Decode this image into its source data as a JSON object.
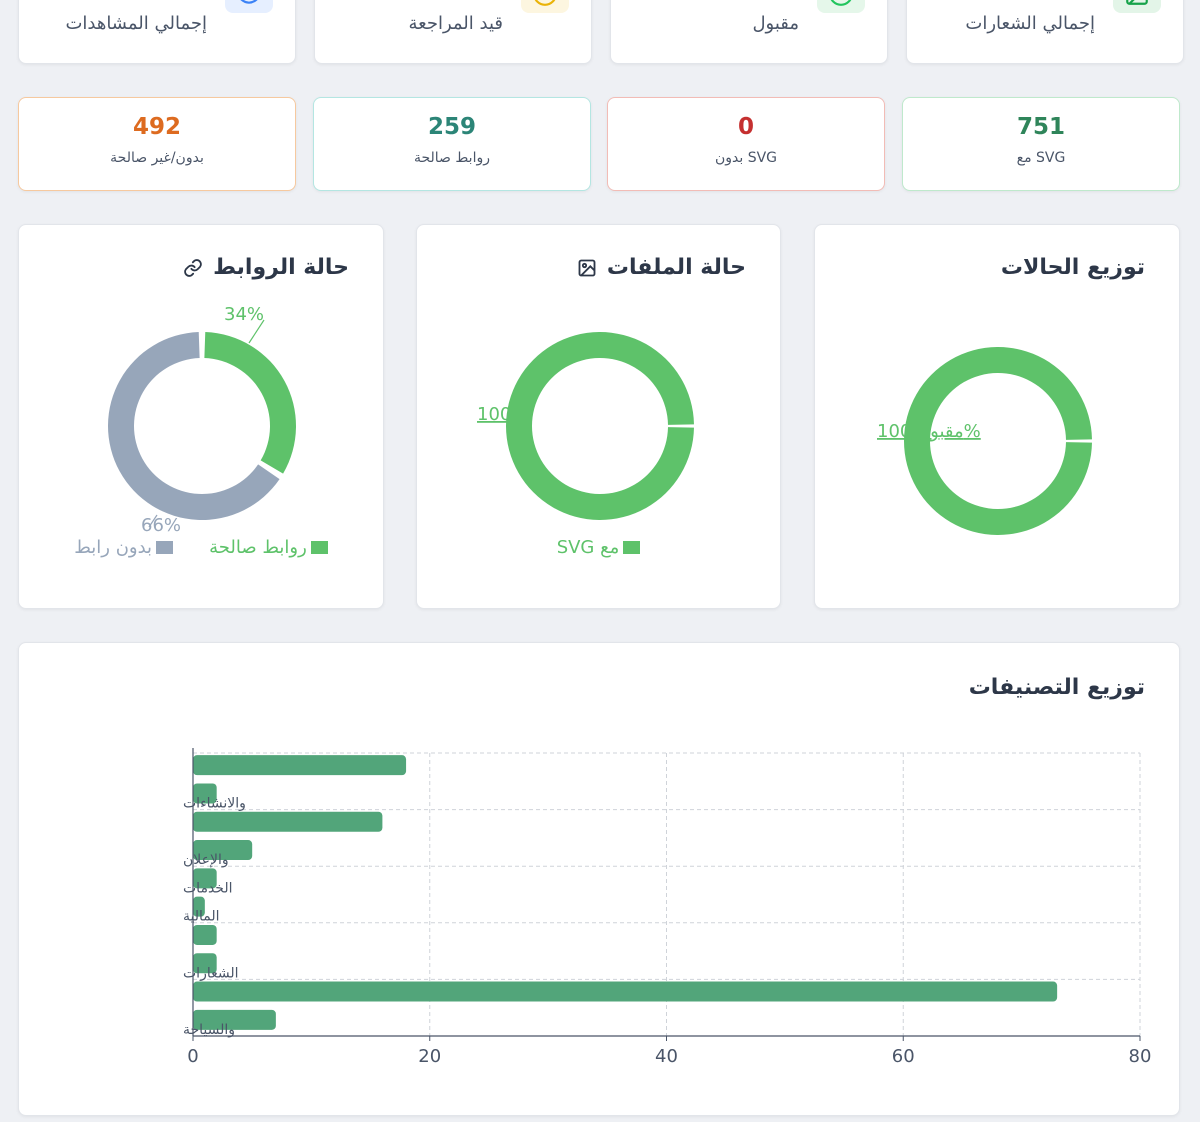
{
  "top_stats": [
    {
      "label": "إجمالي المشاهدات",
      "icon": "eye-icon",
      "color": "#3b82f6",
      "bg": "#e6efff"
    },
    {
      "label": "قيد المراجعة",
      "icon": "clock-icon",
      "color": "#eab308",
      "bg": "#fdf6e0"
    },
    {
      "label": "مقبول",
      "icon": "check-circle-icon",
      "color": "#22c55e",
      "bg": "#e5f7ea"
    },
    {
      "label": "إجمالي الشعارات",
      "icon": "image-icon",
      "color": "#16a34a",
      "bg": "#e3f5e8"
    }
  ],
  "mini_stats": [
    {
      "value": "492",
      "label": "بدون/غير صالحة",
      "color": "#dd6b20",
      "border": "#f6c99f"
    },
    {
      "value": "259",
      "label": "روابط صالحة",
      "color": "#2c8577",
      "border": "#b4e6e2"
    },
    {
      "value": "0",
      "label": "بدون SVG",
      "color": "#c53030",
      "border": "#f2bcb6"
    },
    {
      "value": "751",
      "label": "مع SVG",
      "color": "#2f855a",
      "border": "#bfe9cc"
    }
  ],
  "panels": {
    "links": {
      "title": "حالة الروابط",
      "icon": "link-icon",
      "slices": [
        {
          "name": "روابط صالحة",
          "value": 34,
          "label": "34%",
          "color": "#5ec26a"
        },
        {
          "name": "بدون رابط",
          "value": 66,
          "label": "66%",
          "color": "#97a6ba"
        }
      ]
    },
    "files": {
      "title": "حالة الملفات",
      "icon": "image-icon",
      "slices": [
        {
          "name": "مع SVG",
          "value": 100,
          "label": "100",
          "color": "#5ec26a"
        }
      ]
    },
    "statuses": {
      "title": "توزيع الحالات",
      "slices": [
        {
          "name": "مقبول",
          "value": 100,
          "label": "مقبول 100%",
          "color": "#5ec26a"
        }
      ]
    }
  },
  "chart_data": {
    "type": "bar",
    "orientation": "horizontal",
    "title": "توزيع التصنيفات",
    "bar_color": "#52a57a",
    "values": [
      18,
      2,
      16,
      5,
      2,
      1,
      2,
      2,
      73,
      7
    ],
    "category_labels": [
      {
        "bar_index": 1,
        "text": "والانشاءات"
      },
      {
        "bar_index": 3,
        "text": "والإعلان"
      },
      {
        "bar_index": 4,
        "text": "الخدمات"
      },
      {
        "bar_index": 5,
        "text": "المالية"
      },
      {
        "bar_index": 7,
        "text": "الشعارات"
      },
      {
        "bar_index": 9,
        "text": "والسياحة"
      }
    ],
    "x_ticks": [
      "0",
      "20",
      "40",
      "60",
      "80"
    ],
    "xlim": [
      0,
      80
    ],
    "grid": true
  }
}
